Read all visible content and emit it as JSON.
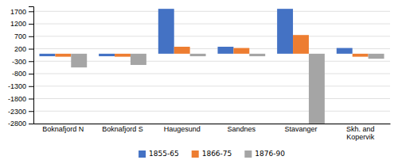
{
  "chart_data": {
    "type": "bar",
    "categories": [
      "Boknafjord N",
      "Boknafjord S",
      "Haugesund",
      "Sandnes",
      "Stavanger",
      "Skh. and\nKopervik"
    ],
    "series": [
      {
        "name": "1855-65",
        "color": "#4472C4",
        "values": [
          -100,
          -100,
          1800,
          280,
          1800,
          230
        ]
      },
      {
        "name": "1866-75",
        "color": "#ED7D31",
        "values": [
          -120,
          -120,
          280,
          230,
          750,
          -120
        ]
      },
      {
        "name": "1876-90",
        "color": "#A5A5A5",
        "values": [
          -550,
          -450,
          -100,
          -100,
          -2800,
          -200
        ]
      }
    ],
    "ylim": [
      -2800,
      1900
    ],
    "yticks": [
      -2800,
      -2300,
      -1800,
      -1300,
      -800,
      -300,
      200,
      700,
      1200,
      1700
    ],
    "grid": true,
    "legend": "bottom"
  }
}
